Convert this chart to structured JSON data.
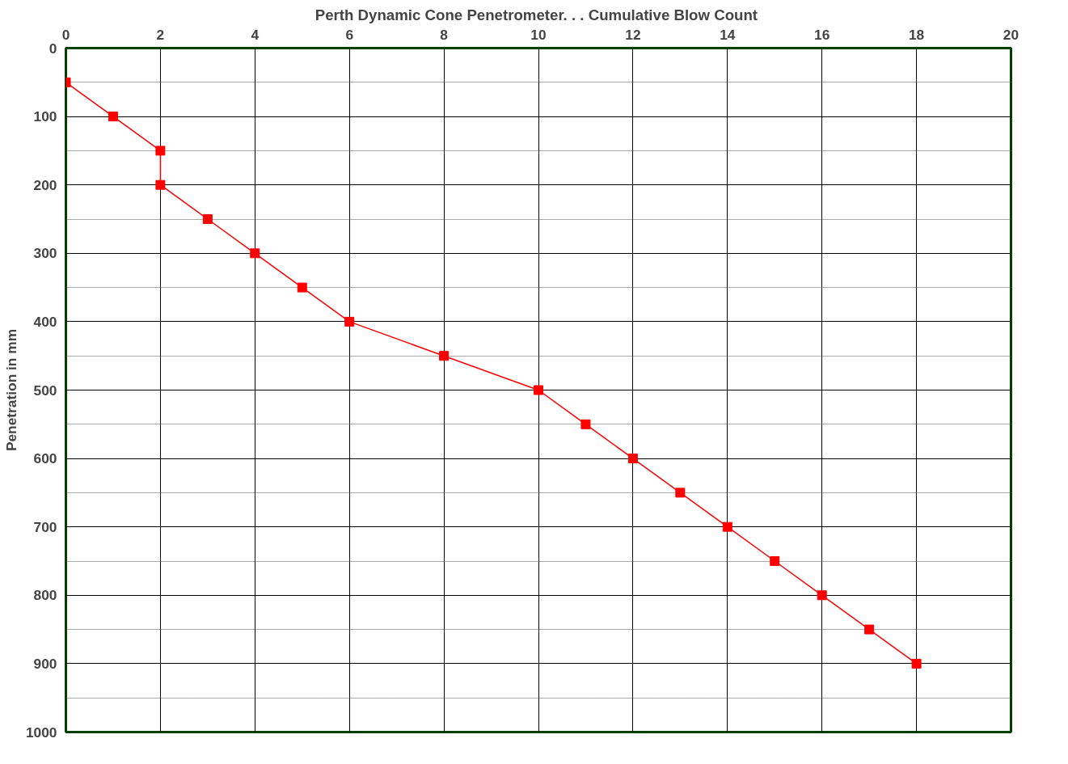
{
  "chart_data": {
    "type": "line",
    "title": "Perth Dynamic Cone Penetrometer. . .  Cumulative Blow Count",
    "ylabel": "Penetration in mm",
    "x": [
      0,
      1,
      2,
      2,
      3,
      4,
      5,
      6,
      8,
      10,
      11,
      12,
      13,
      14,
      15,
      16,
      17,
      18
    ],
    "series": [
      {
        "color": "#ff0000",
        "values": [
          50,
          100,
          150,
          200,
          250,
          300,
          350,
          400,
          450,
          500,
          550,
          600,
          650,
          700,
          750,
          800,
          850,
          900
        ]
      }
    ],
    "xlim": [
      0,
      20
    ],
    "xticks": [
      0,
      2,
      4,
      6,
      8,
      10,
      12,
      14,
      16,
      18,
      20
    ],
    "ylim": [
      1000,
      0
    ],
    "yticks": [
      0,
      100,
      200,
      300,
      400,
      500,
      600,
      700,
      800,
      900,
      1000
    ],
    "grid": true,
    "marker": "square",
    "line_style": "solid"
  }
}
